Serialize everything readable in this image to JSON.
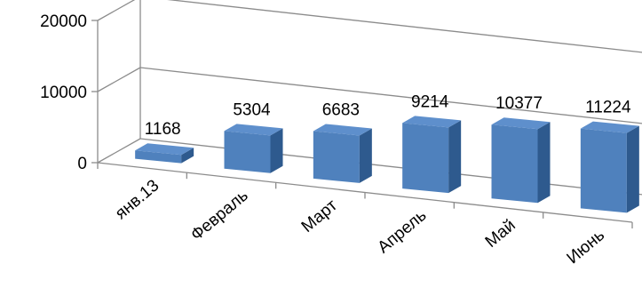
{
  "chart_data": {
    "type": "bar",
    "categories": [
      "янв.13",
      "Февраль",
      "Март",
      "Апрель",
      "Май",
      "Июнь"
    ],
    "values": [
      1168,
      5304,
      6683,
      9214,
      10377,
      11224
    ],
    "ylim": [
      0,
      20000
    ],
    "yticks": [
      "0",
      "10000",
      "20000"
    ],
    "title": "",
    "xlabel": "",
    "ylabel": "",
    "grid": true,
    "legend": "none",
    "bar_color": "#4F81BD",
    "bar_side_color": "#2E5A8E",
    "bar_top_color": "#5E8FCC"
  }
}
